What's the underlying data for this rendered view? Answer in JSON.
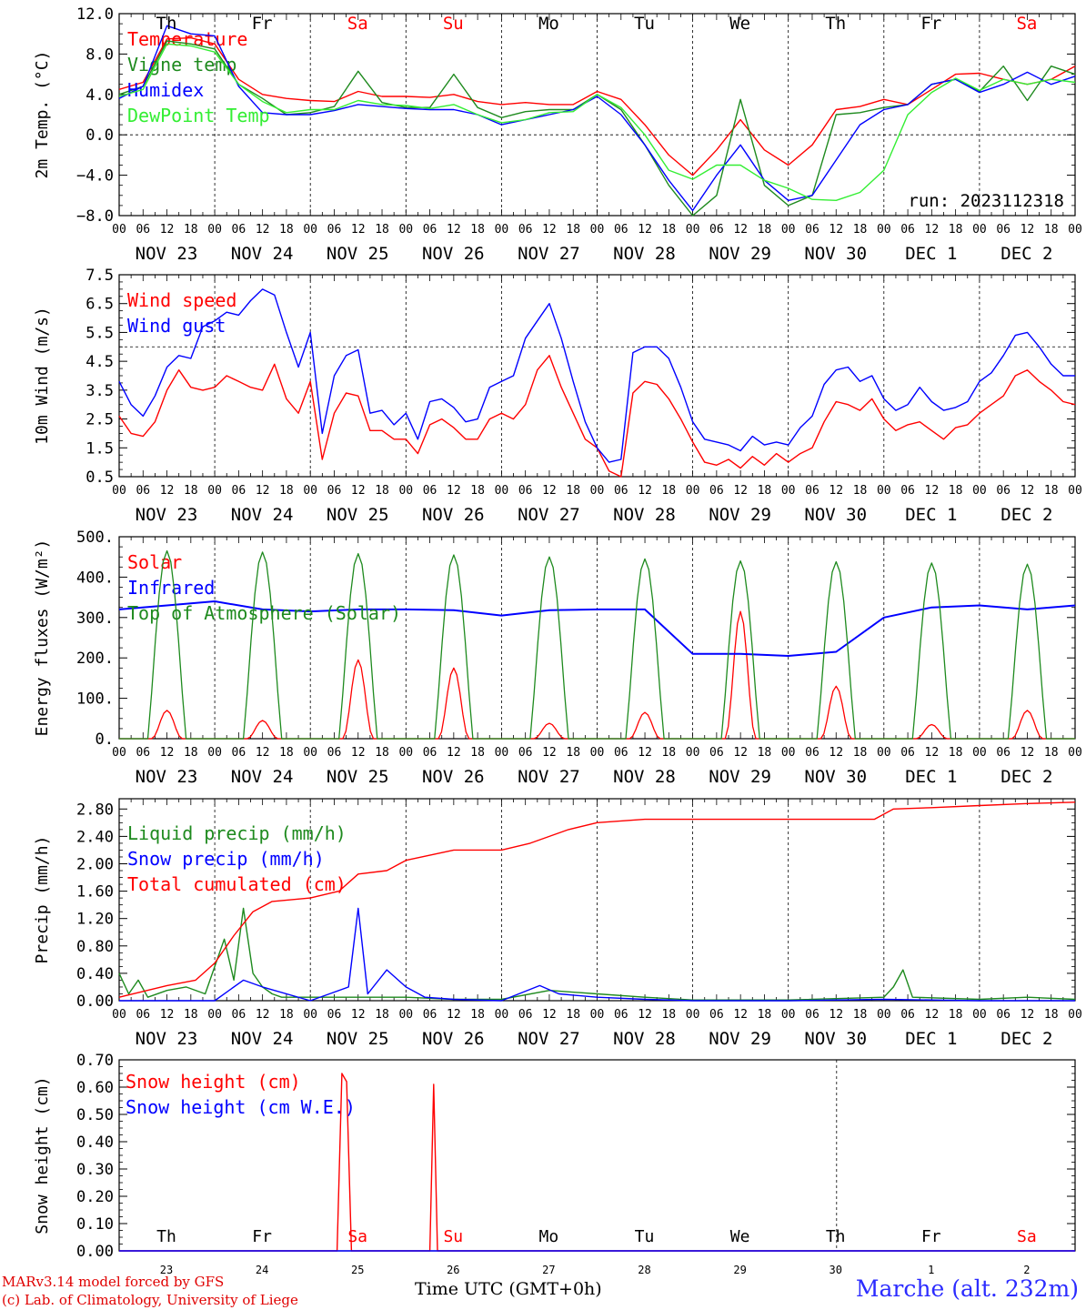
{
  "run_label": "run: 2023112318",
  "footer": {
    "model": "MARv3.14 model forced by GFS",
    "credit": "(c) Lab. of Climatology, University of Liege",
    "time_label": "Time UTC (GMT+0h)",
    "station": "Marche (alt. 232m)"
  },
  "day_names": [
    "Th",
    "Fr",
    "Sa",
    "Su",
    "Mo",
    "Tu",
    "We",
    "Th",
    "Fr",
    "Sa"
  ],
  "day_numbers": [
    "23",
    "24",
    "25",
    "26",
    "27",
    "28",
    "29",
    "30",
    "1",
    "2"
  ],
  "date_labels": [
    "NOV 23",
    "NOV 24",
    "NOV 25",
    "NOV 26",
    "NOV 27",
    "NOV 28",
    "NOV 29",
    "NOV 30",
    "DEC  1",
    "DEC  2"
  ],
  "hour_ticks": [
    "00",
    "06",
    "12",
    "18"
  ],
  "colors": {
    "red": "#ff0000",
    "green": "#1e8a1e",
    "blue": "#0000ff",
    "lightgreen": "#33ee33",
    "weekend": "#ff0000"
  },
  "chart_data": [
    {
      "type": "line",
      "ylabel": "2m Temp. (°C)",
      "ylim": [
        -8,
        12
      ],
      "yticks": [
        "12.0",
        "8.0",
        "4.0",
        "0.0",
        "−4.0",
        "−8.0"
      ],
      "ytick_values": [
        12,
        8,
        4,
        0,
        -4,
        -8
      ],
      "ref_line": 0,
      "x_days": [
        0,
        0.25,
        0.5,
        0.75,
        1,
        1.25,
        1.5,
        1.75,
        2,
        2.25,
        2.5,
        2.75,
        3,
        3.25,
        3.5,
        3.75,
        4,
        4.25,
        4.5,
        4.75,
        5,
        5.25,
        5.5,
        5.75,
        6,
        6.25,
        6.5,
        6.75,
        7,
        7.25,
        7.5,
        7.75,
        8,
        8.25,
        8.5,
        8.75,
        9,
        9.25,
        9.5,
        9.75,
        10
      ],
      "series": [
        {
          "name": "Temperature",
          "color": "red",
          "values": [
            4.5,
            5.2,
            9.5,
            9.6,
            9,
            5.5,
            4,
            3.6,
            3.4,
            3.3,
            4.3,
            3.8,
            3.8,
            3.7,
            4,
            3.3,
            3,
            3.2,
            3,
            3,
            4.3,
            3.5,
            1,
            -2,
            -4,
            -1.5,
            1.5,
            -1.5,
            -3,
            -1,
            2.5,
            2.8,
            3.5,
            3,
            4.5,
            6,
            6.1,
            5.5,
            5,
            5.5,
            6.8
          ]
        },
        {
          "name": "Vigne temp",
          "color": "green",
          "values": [
            4,
            4.8,
            9.3,
            9,
            8.5,
            5,
            3.6,
            2,
            2.2,
            2.8,
            6.3,
            3.2,
            2.7,
            2.7,
            6,
            2.7,
            1.7,
            2.3,
            2.5,
            2.5,
            4,
            2.5,
            -1,
            -5,
            -8,
            -6,
            3.5,
            -5,
            -7,
            -6,
            2,
            2.2,
            2.7,
            3,
            5,
            5.5,
            4.3,
            6.8,
            3.4,
            6.8,
            6
          ]
        },
        {
          "name": "Humidex",
          "color": "blue",
          "values": [
            3.6,
            4.8,
            10.8,
            10,
            9.8,
            4.8,
            2.2,
            2,
            2,
            2.4,
            3,
            2.8,
            2.6,
            2.5,
            2.5,
            2,
            1,
            1.5,
            2,
            2.5,
            3.8,
            2,
            -1,
            -4.5,
            -7.5,
            -4,
            -1,
            -4.5,
            -6.5,
            -6,
            -2.5,
            1,
            2.5,
            3,
            5,
            5.5,
            4.2,
            5,
            6.2,
            5,
            5.8
          ]
        },
        {
          "name": "DewPoint Temp",
          "color": "lightgreen",
          "values": [
            3.8,
            4.5,
            9,
            8.8,
            8.2,
            5,
            3.3,
            2.2,
            2.5,
            2.5,
            3.4,
            3,
            2.9,
            2.6,
            3,
            2,
            1.2,
            1.5,
            2.2,
            2.3,
            4,
            2.7,
            0,
            -3.5,
            -4.4,
            -3,
            -3,
            -4.5,
            -5.3,
            -6.4,
            -6.5,
            -5.7,
            -3.5,
            2,
            4.2,
            5.6,
            4.4,
            5.5,
            5,
            5.5,
            5.2
          ]
        }
      ]
    },
    {
      "type": "line",
      "ylabel": "10m Wind (m/s)",
      "ylim": [
        0.5,
        7.5
      ],
      "yticks": [
        "7.5",
        "6.5",
        "5.5",
        "4.5",
        "3.5",
        "2.5",
        "1.5",
        "0.5"
      ],
      "ytick_values": [
        7.5,
        6.5,
        5.5,
        4.5,
        3.5,
        2.5,
        1.5,
        0.5
      ],
      "ref_line": 5,
      "x_days": [
        0,
        0.125,
        0.25,
        0.375,
        0.5,
        0.625,
        0.75,
        0.875,
        1,
        1.125,
        1.25,
        1.375,
        1.5,
        1.625,
        1.75,
        1.875,
        2,
        2.125,
        2.25,
        2.375,
        2.5,
        2.625,
        2.75,
        2.875,
        3,
        3.125,
        3.25,
        3.375,
        3.5,
        3.625,
        3.75,
        3.875,
        4,
        4.125,
        4.25,
        4.375,
        4.5,
        4.625,
        4.75,
        4.875,
        5,
        5.125,
        5.25,
        5.375,
        5.5,
        5.625,
        5.75,
        5.875,
        6,
        6.125,
        6.25,
        6.375,
        6.5,
        6.625,
        6.75,
        6.875,
        7,
        7.125,
        7.25,
        7.375,
        7.5,
        7.625,
        7.75,
        7.875,
        8,
        8.125,
        8.25,
        8.375,
        8.5,
        8.625,
        8.75,
        8.875,
        9,
        9.125,
        9.25,
        9.375,
        9.5,
        9.625,
        9.75,
        9.875,
        10
      ],
      "series": [
        {
          "name": "Wind speed",
          "color": "red",
          "values": [
            2.6,
            2,
            1.9,
            2.4,
            3.5,
            4.2,
            3.6,
            3.5,
            3.6,
            4,
            3.8,
            3.6,
            3.5,
            4.4,
            3.2,
            2.7,
            3.8,
            1.1,
            2.7,
            3.4,
            3.3,
            2.1,
            2.1,
            1.8,
            1.8,
            1.3,
            2.3,
            2.5,
            2.2,
            1.8,
            1.8,
            2.5,
            2.7,
            2.5,
            3,
            4.2,
            4.7,
            3.6,
            2.7,
            1.8,
            1.5,
            0.7,
            0.5,
            3.4,
            3.8,
            3.7,
            3.2,
            2.5,
            1.7,
            1,
            0.9,
            1.1,
            0.8,
            1.2,
            0.9,
            1.3,
            1,
            1.3,
            1.5,
            2.4,
            3.1,
            3,
            2.8,
            3.2,
            2.5,
            2.1,
            2.3,
            2.4,
            2.1,
            1.8,
            2.2,
            2.3,
            2.7,
            3,
            3.3,
            4,
            4.2,
            3.8,
            3.5,
            3.1,
            3
          ]
        },
        {
          "name": "Wind gust",
          "color": "blue",
          "values": [
            3.8,
            3,
            2.6,
            3.3,
            4.3,
            4.7,
            4.6,
            5.7,
            5.9,
            6.2,
            6.1,
            6.6,
            7,
            6.8,
            5.5,
            4.3,
            5.5,
            2,
            4,
            4.7,
            4.9,
            2.7,
            2.8,
            2.3,
            2.7,
            1.8,
            3.1,
            3.2,
            2.9,
            2.4,
            2.5,
            3.6,
            3.8,
            4,
            5.3,
            5.9,
            6.5,
            5.3,
            3.8,
            2.4,
            1.5,
            1,
            1.1,
            4.8,
            5,
            5,
            4.6,
            3.6,
            2.4,
            1.8,
            1.7,
            1.6,
            1.4,
            1.9,
            1.6,
            1.7,
            1.6,
            2.2,
            2.6,
            3.7,
            4.2,
            4.3,
            3.8,
            4,
            3.2,
            2.8,
            3,
            3.6,
            3.1,
            2.8,
            2.9,
            3.1,
            3.8,
            4.1,
            4.7,
            5.4,
            5.5,
            5,
            4.4,
            4,
            4
          ]
        }
      ]
    },
    {
      "type": "line",
      "ylabel": "Energy fluxes (W/m²)",
      "ylim": [
        0,
        500
      ],
      "yticks": [
        "500.",
        "400.",
        "300.",
        "200.",
        "100.",
        "0."
      ],
      "ytick_values": [
        500,
        400,
        300,
        200,
        100,
        0
      ],
      "series": [
        {
          "name": "Solar",
          "color": "red",
          "daily_peaks": [
            70,
            45,
            195,
            175,
            38,
            65,
            315,
            130,
            35,
            70
          ]
        },
        {
          "name": "Infrared",
          "color": "blue",
          "x_days": [
            0,
            0.5,
            1,
            1.5,
            2,
            2.5,
            3,
            3.5,
            4,
            4.5,
            5,
            5.5,
            6,
            6.5,
            7,
            7.5,
            8,
            8.5,
            9,
            9.5,
            10
          ],
          "values": [
            320,
            330,
            340,
            320,
            315,
            320,
            320,
            318,
            305,
            318,
            320,
            320,
            210,
            210,
            205,
            215,
            300,
            325,
            330,
            320,
            330
          ]
        },
        {
          "name": "Top of Atmosphere (Solar)",
          "color": "green",
          "daily_peaks": [
            465,
            462,
            458,
            455,
            450,
            445,
            440,
            438,
            435,
            432
          ]
        }
      ]
    },
    {
      "type": "line",
      "ylabel": "Precip (mm/h)",
      "ylim": [
        0,
        2.95
      ],
      "yticks": [
        "2.80",
        "2.40",
        "2.00",
        "1.60",
        "1.20",
        "0.80",
        "0.40",
        "0.00"
      ],
      "ytick_values": [
        2.8,
        2.4,
        2,
        1.6,
        1.2,
        0.8,
        0.4,
        0
      ],
      "series": [
        {
          "name": "Liquid precip (mm/h)",
          "color": "green",
          "x_days": [
            0,
            0.1,
            0.2,
            0.3,
            0.5,
            0.7,
            0.9,
            1,
            1.1,
            1.2,
            1.3,
            1.4,
            1.5,
            1.6,
            1.7,
            2,
            2.5,
            3,
            3.5,
            4,
            4.5,
            5,
            5.5,
            6,
            7,
            8,
            8.1,
            8.2,
            8.3,
            9,
            9.5,
            10
          ],
          "values": [
            0.4,
            0.1,
            0.3,
            0.05,
            0.15,
            0.2,
            0.1,
            0.5,
            0.9,
            0.3,
            1.35,
            0.4,
            0.2,
            0.1,
            0.05,
            0.05,
            0.05,
            0.05,
            0.02,
            0.02,
            0.15,
            0.1,
            0.05,
            0.01,
            0.01,
            0.05,
            0.2,
            0.45,
            0.05,
            0.02,
            0.05,
            0.02
          ]
        },
        {
          "name": "Snow precip (mm/h)",
          "color": "blue",
          "x_days": [
            0,
            1,
            1.3,
            1.5,
            2,
            2.2,
            2.4,
            2.5,
            2.6,
            2.8,
            3,
            3.2,
            3.5,
            4,
            4.4,
            4.6,
            5,
            5.5,
            6,
            7,
            8,
            9,
            10
          ],
          "values": [
            0,
            0,
            0.3,
            0.2,
            0,
            0.1,
            0.2,
            1.35,
            0.1,
            0.45,
            0.2,
            0.05,
            0.02,
            0,
            0.22,
            0.1,
            0.05,
            0.02,
            0,
            0,
            0.02,
            0,
            0
          ]
        },
        {
          "name": "Total cumulated (cm)",
          "color": "red",
          "x_days": [
            0,
            0.5,
            0.8,
            1,
            1.2,
            1.4,
            1.6,
            2,
            2.3,
            2.5,
            2.8,
            3,
            3.5,
            4,
            4.3,
            4.7,
            5,
            5.5,
            6,
            7,
            7.9,
            8.1,
            8.5,
            9,
            9.5,
            10
          ],
          "values": [
            0.05,
            0.22,
            0.3,
            0.55,
            0.95,
            1.3,
            1.45,
            1.5,
            1.6,
            1.85,
            1.9,
            2.05,
            2.2,
            2.2,
            2.3,
            2.5,
            2.6,
            2.65,
            2.65,
            2.65,
            2.65,
            2.8,
            2.82,
            2.85,
            2.88,
            2.9
          ]
        }
      ]
    },
    {
      "type": "line",
      "ylabel": "Snow height (cm)",
      "ylim": [
        0,
        0.7
      ],
      "yticks": [
        "0.70",
        "0.60",
        "0.50",
        "0.40",
        "0.30",
        "0.20",
        "0.10",
        "0.00"
      ],
      "ytick_values": [
        0.7,
        0.6,
        0.5,
        0.4,
        0.3,
        0.2,
        0.1,
        0
      ],
      "series": [
        {
          "name": "Snow height (cm)",
          "color": "red",
          "x_days": [
            0,
            2.28,
            2.33,
            2.38,
            2.43,
            3.25,
            3.29,
            3.33,
            10
          ],
          "values": [
            0,
            0,
            0.65,
            0.62,
            0,
            0,
            0.61,
            0,
            0
          ]
        },
        {
          "name": "Snow height (cm W.E.)",
          "color": "blue",
          "x_days": [
            0,
            10
          ],
          "values": [
            0,
            0
          ]
        }
      ]
    }
  ]
}
